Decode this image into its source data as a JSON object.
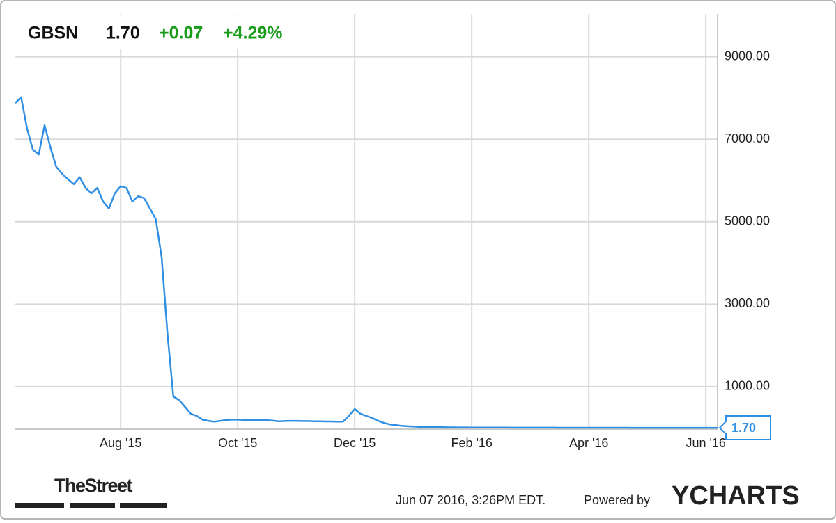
{
  "chart_data": {
    "type": "line",
    "symbol": "GBSN",
    "price": "1.70",
    "change": "+0.07",
    "change_pct": "+4.29%",
    "categories": [
      null,
      null,
      null,
      null,
      null,
      null,
      null,
      null,
      null,
      null,
      null,
      null,
      null,
      null,
      null,
      null,
      null,
      null,
      "Aug '15",
      null,
      null,
      null,
      null,
      null,
      null,
      null,
      null,
      null,
      null,
      null,
      null,
      null,
      null,
      null,
      null,
      null,
      null,
      null,
      "Oct '15",
      null,
      null,
      null,
      null,
      null,
      null,
      null,
      null,
      null,
      null,
      null,
      null,
      null,
      null,
      null,
      null,
      null,
      null,
      null,
      "Dec '15",
      null,
      null,
      null,
      null,
      null,
      null,
      null,
      null,
      null,
      null,
      null,
      null,
      null,
      null,
      null,
      null,
      null,
      null,
      null,
      "Feb '16",
      null,
      null,
      null,
      null,
      null,
      null,
      null,
      null,
      null,
      null,
      null,
      null,
      null,
      null,
      null,
      null,
      null,
      null,
      null,
      "Apr '16",
      null,
      null,
      null,
      null,
      null,
      null,
      null,
      null,
      null,
      null,
      null,
      null,
      null,
      null,
      null,
      null,
      null,
      null,
      null,
      "Jun '16",
      null,
      null
    ],
    "series": [
      {
        "color": "#2f8fe3",
        "values": [
          7880,
          8020,
          7260,
          6750,
          6630,
          7340,
          6800,
          6330,
          6160,
          6030,
          5910,
          6080,
          5820,
          5690,
          5820,
          5490,
          5320,
          5690,
          5860,
          5820,
          5490,
          5620,
          5570,
          5320,
          5060,
          4140,
          2280,
          760,
          675,
          510,
          340,
          290,
          200,
          170,
          150,
          170,
          190,
          200,
          200,
          195,
          190,
          195,
          190,
          185,
          175,
          160,
          165,
          170,
          170,
          165,
          165,
          160,
          160,
          155,
          155,
          150,
          150,
          290,
          460,
          340,
          290,
          240,
          170,
          120,
          85,
          70,
          50,
          40,
          32,
          26,
          22,
          19,
          17,
          15,
          13,
          12,
          11,
          10,
          9,
          8.5,
          8,
          7.5,
          7,
          6.8,
          6.5,
          6.2,
          6,
          5.8,
          5.5,
          5.2,
          5,
          4.8,
          4.6,
          4.4,
          4.2,
          4,
          3.8,
          3.6,
          3.5,
          3.4,
          3.3,
          3.2,
          3.1,
          3,
          2.9,
          2.8,
          2.7,
          2.6,
          2.5,
          2.4,
          2.3,
          2.2,
          2.1,
          2,
          1.95,
          1.9,
          1.85,
          1.8,
          1.75,
          1.63,
          1.7
        ]
      }
    ],
    "ylim": [
      -30,
      10040
    ],
    "yticks": [
      {
        "value": 1000,
        "label": "1000.00"
      },
      {
        "value": 3000,
        "label": "3000.00"
      },
      {
        "value": 5000,
        "label": "5000.00"
      },
      {
        "value": 7000,
        "label": "7000.00"
      },
      {
        "value": 9000,
        "label": "9000.00"
      }
    ],
    "grid": true,
    "timestamp": "Jun 07 2016, 3:26PM EDT.",
    "powered_by": "Powered by",
    "brand": "YCHARTS",
    "source_logo": "TheStreet"
  }
}
